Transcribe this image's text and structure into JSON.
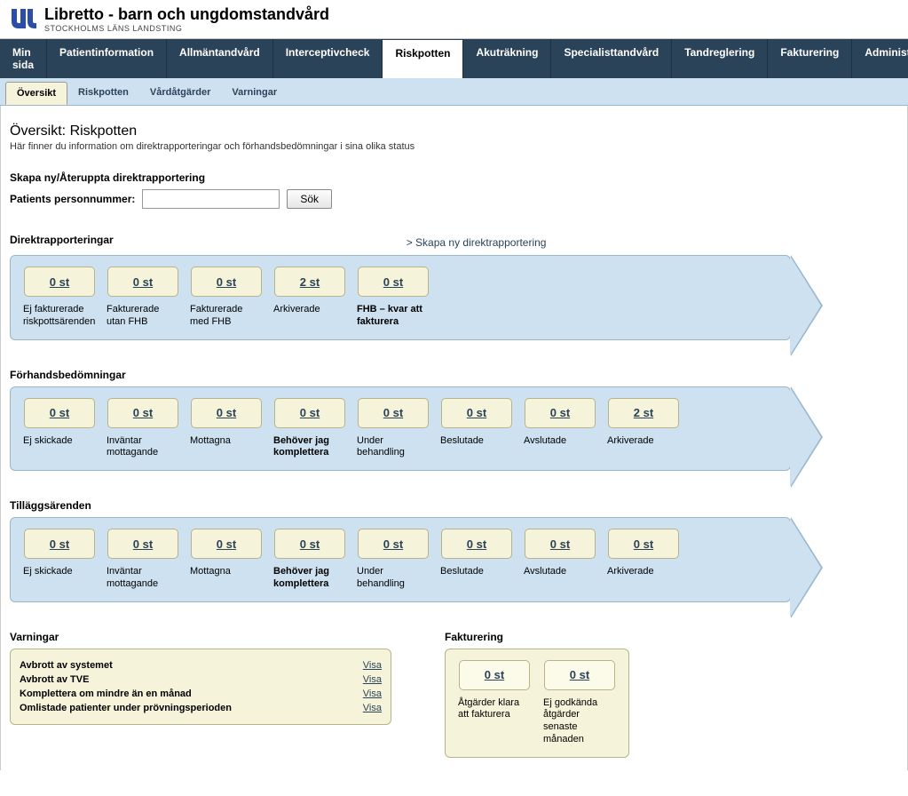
{
  "brand": {
    "title": "Libretto - barn och ungdomstandvård",
    "subtitle": "STOCKHOLMS LÄNS LANDSTING"
  },
  "mainNav": {
    "items": [
      "Min sida",
      "Patientinformation",
      "Allmäntandvård",
      "Interceptivcheck",
      "Riskpotten",
      "Akuträkning",
      "Specialisttandvård",
      "Tandreglering",
      "Fakturering",
      "Administration"
    ],
    "activeIndex": 4
  },
  "subTabs": {
    "items": [
      "Översikt",
      "Riskpotten",
      "Vårdåtgärder",
      "Varningar"
    ],
    "activeIndex": 0
  },
  "page": {
    "title": "Översikt: Riskpotten",
    "description": "Här finner du information om direktrapporteringar och förhandsbedömningar i sina olika status"
  },
  "search": {
    "heading": "Skapa ny/Återuppta direktrapportering",
    "label": "Patients personnummer:",
    "button": "Sök",
    "value": ""
  },
  "directReports": {
    "heading": "Direktrapporteringar",
    "createLink": "> Skapa ny direktrapportering",
    "items": [
      {
        "count": "0 st",
        "label": "Ej fakturerade riskpottsärenden",
        "bold": false
      },
      {
        "count": "0 st",
        "label": "Fakturerade utan FHB",
        "bold": false
      },
      {
        "count": "0 st",
        "label": "Fakturerade med FHB",
        "bold": false
      },
      {
        "count": "2 st",
        "label": "Arkiverade",
        "bold": false
      },
      {
        "count": "0 st",
        "label": "FHB – kvar att fakturera",
        "bold": true
      }
    ]
  },
  "preAssess": {
    "heading": "Förhandsbedömningar",
    "items": [
      {
        "count": "0 st",
        "label": "Ej skickade",
        "bold": false
      },
      {
        "count": "0 st",
        "label": "Inväntar mottagande",
        "bold": false
      },
      {
        "count": "0 st",
        "label": "Mottagna",
        "bold": false
      },
      {
        "count": "0 st",
        "label": "Behöver jag komplettera",
        "bold": true
      },
      {
        "count": "0 st",
        "label": "Under behandling",
        "bold": false
      },
      {
        "count": "0 st",
        "label": "Beslutade",
        "bold": false
      },
      {
        "count": "0 st",
        "label": "Avslutade",
        "bold": false
      },
      {
        "count": "2 st",
        "label": "Arkiverade",
        "bold": false
      }
    ]
  },
  "addMatters": {
    "heading": "Tilläggsärenden",
    "items": [
      {
        "count": "0 st",
        "label": "Ej skickade",
        "bold": false
      },
      {
        "count": "0 st",
        "label": "Inväntar mottagande",
        "bold": false
      },
      {
        "count": "0 st",
        "label": "Mottagna",
        "bold": false
      },
      {
        "count": "0 st",
        "label": "Behöver jag komplettera",
        "bold": true
      },
      {
        "count": "0 st",
        "label": "Under behandling",
        "bold": false
      },
      {
        "count": "0 st",
        "label": "Beslutade",
        "bold": false
      },
      {
        "count": "0 st",
        "label": "Avslutade",
        "bold": false
      },
      {
        "count": "0 st",
        "label": "Arkiverade",
        "bold": false
      }
    ]
  },
  "warnings": {
    "heading": "Varningar",
    "linkLabel": "Visa",
    "items": [
      "Avbrott av systemet",
      "Avbrott av TVE",
      "Komplettera om mindre än en månad",
      "Omlistade patienter under prövningsperioden"
    ]
  },
  "invoicing": {
    "heading": "Fakturering",
    "items": [
      {
        "count": "0 st",
        "label": "Åtgärder klara att fakturera"
      },
      {
        "count": "0 st",
        "label": "Ej godkända åtgärder senaste månaden"
      }
    ]
  },
  "colors": {
    "navBg": "#2b4359",
    "panelBg": "#cde1f0",
    "panelBorder": "#9ab6cc",
    "boxBg": "#f5f3d9",
    "boxBorder": "#b8b48a"
  }
}
